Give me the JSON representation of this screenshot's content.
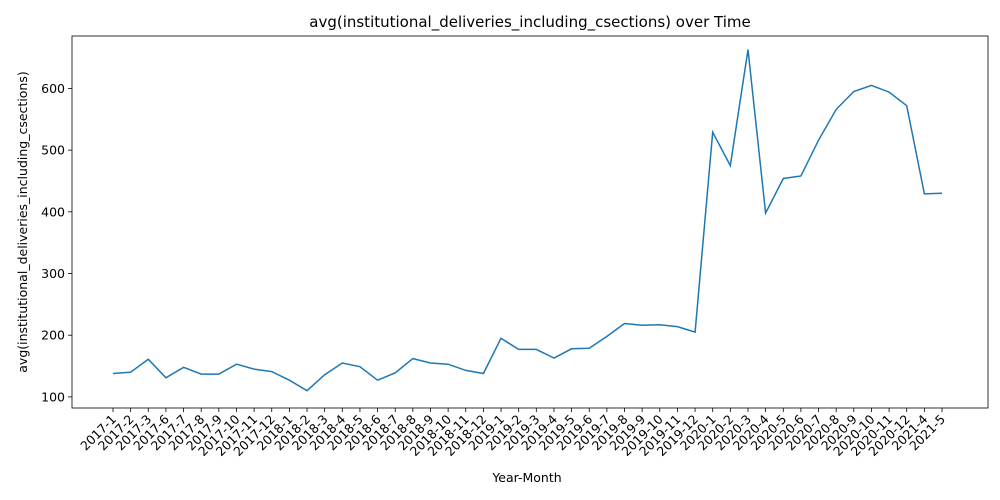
{
  "chart_data": {
    "type": "line",
    "title": "avg(institutional_deliveries_including_csections) over Time",
    "xlabel": "Year-Month",
    "ylabel": "avg(institutional_deliveries_including_csections)",
    "ylim": [
      82,
      685
    ],
    "yticks": [
      100,
      200,
      300,
      400,
      500,
      600
    ],
    "grid": false,
    "line_color": "#1f77b4",
    "categories": [
      "2017-1",
      "2017-2",
      "2017-3",
      "2017-6",
      "2017-7",
      "2017-8",
      "2017-9",
      "2017-10",
      "2017-11",
      "2017-12",
      "2018-1",
      "2018-2",
      "2018-3",
      "2018-4",
      "2018-5",
      "2018-6",
      "2018-7",
      "2018-8",
      "2018-9",
      "2018-10",
      "2018-11",
      "2018-12",
      "2019-1",
      "2019-2",
      "2019-3",
      "2019-4",
      "2019-5",
      "2019-6",
      "2019-7",
      "2019-8",
      "2019-9",
      "2019-10",
      "2019-11",
      "2019-12",
      "2020-1",
      "2020-2",
      "2020-3",
      "2020-4",
      "2020-5",
      "2020-6",
      "2020-7",
      "2020-8",
      "2020-9",
      "2020-10",
      "2020-11",
      "2020-12",
      "2021-4",
      "2021-5"
    ],
    "series": [
      {
        "values": [
          138,
          140,
          161,
          131,
          148,
          137,
          137,
          153,
          145,
          141,
          127,
          110,
          136,
          155,
          149,
          127,
          139,
          162,
          155,
          153,
          143,
          138,
          195,
          177,
          177,
          163,
          178,
          179,
          198,
          219,
          216,
          217,
          214,
          205,
          529,
          475,
          663,
          398,
          454,
          458,
          516,
          566,
          595,
          605,
          594,
          572,
          429,
          430
        ]
      }
    ]
  }
}
